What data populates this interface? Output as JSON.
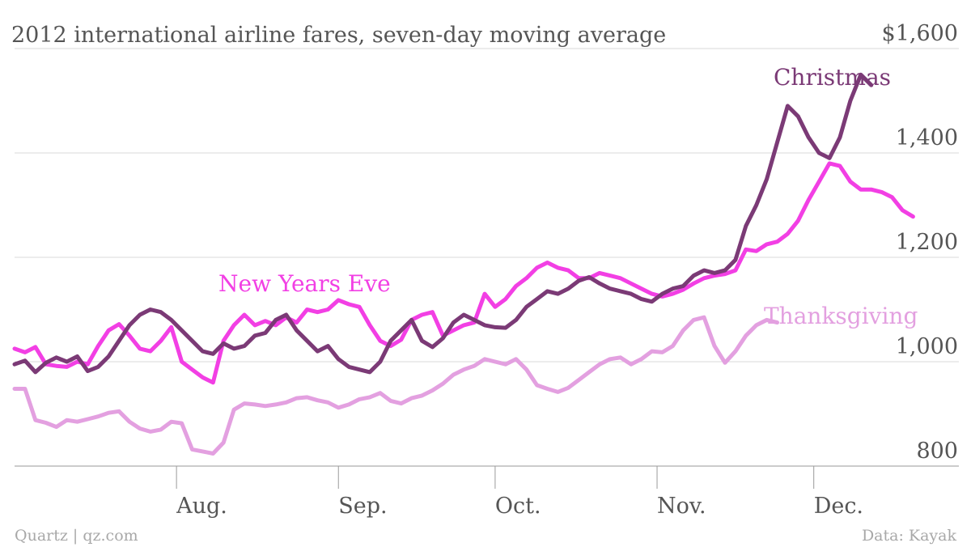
{
  "chart_data": {
    "type": "line",
    "title": "2012 international airline fares, seven-day moving average",
    "ylim": [
      800,
      1600
    ],
    "y_ticks": [
      {
        "value": 1600,
        "label": "$1,600"
      },
      {
        "value": 1400,
        "label": "1,400"
      },
      {
        "value": 1200,
        "label": "1,200"
      },
      {
        "value": 1000,
        "label": "1,000"
      },
      {
        "value": 800,
        "label": "800"
      }
    ],
    "x_ticks": [
      {
        "x": 31,
        "label": "Aug."
      },
      {
        "x": 62,
        "label": "Sep."
      },
      {
        "x": 92,
        "label": "Oct."
      },
      {
        "x": 123,
        "label": "Nov."
      },
      {
        "x": 153,
        "label": "Dec."
      }
    ],
    "xlim": [
      0,
      180
    ],
    "grid": true,
    "source_left": "Quartz | qz.com",
    "source_right": "Data: Kayak",
    "series": [
      {
        "name": "New Years Eve",
        "color": "#f23fe4",
        "points": [
          [
            0,
            1025
          ],
          [
            2,
            1018
          ],
          [
            4,
            1028
          ],
          [
            6,
            995
          ],
          [
            8,
            992
          ],
          [
            10,
            990
          ],
          [
            12,
            1000
          ],
          [
            14,
            995
          ],
          [
            16,
            1030
          ],
          [
            18,
            1060
          ],
          [
            20,
            1072
          ],
          [
            22,
            1050
          ],
          [
            24,
            1025
          ],
          [
            26,
            1020
          ],
          [
            28,
            1040
          ],
          [
            30,
            1066
          ],
          [
            32,
            1000
          ],
          [
            34,
            985
          ],
          [
            36,
            970
          ],
          [
            38,
            960
          ],
          [
            40,
            1040
          ],
          [
            42,
            1070
          ],
          [
            44,
            1090
          ],
          [
            46,
            1070
          ],
          [
            48,
            1078
          ],
          [
            50,
            1070
          ],
          [
            52,
            1085
          ],
          [
            54,
            1075
          ],
          [
            56,
            1100
          ],
          [
            58,
            1095
          ],
          [
            60,
            1100
          ],
          [
            62,
            1118
          ],
          [
            64,
            1110
          ],
          [
            66,
            1105
          ],
          [
            68,
            1070
          ],
          [
            70,
            1040
          ],
          [
            72,
            1030
          ],
          [
            74,
            1042
          ],
          [
            76,
            1080
          ],
          [
            78,
            1090
          ],
          [
            80,
            1095
          ],
          [
            82,
            1050
          ],
          [
            84,
            1060
          ],
          [
            86,
            1070
          ],
          [
            88,
            1075
          ],
          [
            90,
            1130
          ],
          [
            92,
            1105
          ],
          [
            94,
            1120
          ],
          [
            96,
            1145
          ],
          [
            98,
            1160
          ],
          [
            100,
            1180
          ],
          [
            102,
            1190
          ],
          [
            104,
            1180
          ],
          [
            106,
            1175
          ],
          [
            108,
            1160
          ],
          [
            110,
            1160
          ],
          [
            112,
            1170
          ],
          [
            114,
            1165
          ],
          [
            116,
            1160
          ],
          [
            118,
            1150
          ],
          [
            120,
            1140
          ],
          [
            122,
            1130
          ],
          [
            124,
            1125
          ],
          [
            126,
            1130
          ],
          [
            128,
            1138
          ],
          [
            130,
            1150
          ],
          [
            132,
            1160
          ],
          [
            134,
            1165
          ],
          [
            136,
            1168
          ],
          [
            138,
            1175
          ],
          [
            140,
            1215
          ],
          [
            142,
            1212
          ],
          [
            144,
            1225
          ],
          [
            146,
            1230
          ],
          [
            148,
            1245
          ],
          [
            150,
            1270
          ],
          [
            152,
            1310
          ],
          [
            154,
            1345
          ],
          [
            156,
            1380
          ],
          [
            158,
            1375
          ],
          [
            160,
            1345
          ],
          [
            162,
            1330
          ],
          [
            164,
            1330
          ],
          [
            166,
            1325
          ],
          [
            168,
            1315
          ],
          [
            170,
            1290
          ],
          [
            172,
            1278
          ]
        ]
      },
      {
        "name": "Christmas",
        "color": "#7b3a76",
        "points": [
          [
            0,
            995
          ],
          [
            2,
            1002
          ],
          [
            4,
            980
          ],
          [
            6,
            998
          ],
          [
            8,
            1008
          ],
          [
            10,
            1000
          ],
          [
            12,
            1010
          ],
          [
            14,
            982
          ],
          [
            16,
            990
          ],
          [
            18,
            1010
          ],
          [
            20,
            1040
          ],
          [
            22,
            1070
          ],
          [
            24,
            1090
          ],
          [
            26,
            1100
          ],
          [
            28,
            1095
          ],
          [
            30,
            1080
          ],
          [
            32,
            1060
          ],
          [
            34,
            1040
          ],
          [
            36,
            1020
          ],
          [
            38,
            1015
          ],
          [
            40,
            1035
          ],
          [
            42,
            1025
          ],
          [
            44,
            1030
          ],
          [
            46,
            1050
          ],
          [
            48,
            1055
          ],
          [
            50,
            1080
          ],
          [
            52,
            1090
          ],
          [
            54,
            1060
          ],
          [
            56,
            1040
          ],
          [
            58,
            1020
          ],
          [
            60,
            1030
          ],
          [
            62,
            1005
          ],
          [
            64,
            990
          ],
          [
            66,
            985
          ],
          [
            68,
            980
          ],
          [
            70,
            1000
          ],
          [
            72,
            1040
          ],
          [
            74,
            1060
          ],
          [
            76,
            1080
          ],
          [
            78,
            1040
          ],
          [
            80,
            1028
          ],
          [
            82,
            1045
          ],
          [
            84,
            1075
          ],
          [
            86,
            1090
          ],
          [
            88,
            1080
          ],
          [
            90,
            1070
          ],
          [
            92,
            1066
          ],
          [
            94,
            1065
          ],
          [
            96,
            1080
          ],
          [
            98,
            1105
          ],
          [
            100,
            1120
          ],
          [
            102,
            1135
          ],
          [
            104,
            1130
          ],
          [
            106,
            1140
          ],
          [
            108,
            1155
          ],
          [
            110,
            1162
          ],
          [
            112,
            1150
          ],
          [
            114,
            1140
          ],
          [
            116,
            1135
          ],
          [
            118,
            1130
          ],
          [
            120,
            1120
          ],
          [
            122,
            1115
          ],
          [
            124,
            1130
          ],
          [
            126,
            1140
          ],
          [
            128,
            1145
          ],
          [
            130,
            1165
          ],
          [
            132,
            1175
          ],
          [
            134,
            1170
          ],
          [
            136,
            1175
          ],
          [
            138,
            1195
          ],
          [
            140,
            1260
          ],
          [
            142,
            1300
          ],
          [
            144,
            1350
          ],
          [
            146,
            1420
          ],
          [
            148,
            1490
          ],
          [
            150,
            1470
          ],
          [
            152,
            1430
          ],
          [
            154,
            1400
          ],
          [
            156,
            1390
          ],
          [
            158,
            1430
          ],
          [
            160,
            1500
          ],
          [
            162,
            1550
          ],
          [
            164,
            1530
          ]
        ]
      },
      {
        "name": "Thanksgiving",
        "color": "#e3a0e0",
        "points": [
          [
            0,
            948
          ],
          [
            2,
            948
          ],
          [
            4,
            888
          ],
          [
            6,
            883
          ],
          [
            8,
            875
          ],
          [
            10,
            888
          ],
          [
            12,
            885
          ],
          [
            14,
            890
          ],
          [
            16,
            895
          ],
          [
            18,
            902
          ],
          [
            20,
            905
          ],
          [
            22,
            885
          ],
          [
            24,
            872
          ],
          [
            26,
            866
          ],
          [
            28,
            870
          ],
          [
            30,
            885
          ],
          [
            32,
            882
          ],
          [
            34,
            832
          ],
          [
            36,
            828
          ],
          [
            38,
            824
          ],
          [
            40,
            845
          ],
          [
            42,
            908
          ],
          [
            44,
            920
          ],
          [
            46,
            918
          ],
          [
            48,
            915
          ],
          [
            50,
            918
          ],
          [
            52,
            922
          ],
          [
            54,
            930
          ],
          [
            56,
            932
          ],
          [
            58,
            926
          ],
          [
            60,
            922
          ],
          [
            62,
            912
          ],
          [
            64,
            918
          ],
          [
            66,
            928
          ],
          [
            68,
            932
          ],
          [
            70,
            940
          ],
          [
            72,
            925
          ],
          [
            74,
            920
          ],
          [
            76,
            930
          ],
          [
            78,
            935
          ],
          [
            80,
            945
          ],
          [
            82,
            958
          ],
          [
            84,
            975
          ],
          [
            86,
            985
          ],
          [
            88,
            992
          ],
          [
            90,
            1005
          ],
          [
            92,
            1000
          ],
          [
            94,
            995
          ],
          [
            96,
            1005
          ],
          [
            98,
            985
          ],
          [
            100,
            955
          ],
          [
            102,
            948
          ],
          [
            104,
            942
          ],
          [
            106,
            950
          ],
          [
            108,
            965
          ],
          [
            110,
            980
          ],
          [
            112,
            995
          ],
          [
            114,
            1005
          ],
          [
            116,
            1008
          ],
          [
            118,
            995
          ],
          [
            120,
            1005
          ],
          [
            122,
            1020
          ],
          [
            124,
            1018
          ],
          [
            126,
            1030
          ],
          [
            128,
            1060
          ],
          [
            130,
            1080
          ],
          [
            132,
            1085
          ],
          [
            134,
            1030
          ],
          [
            136,
            998
          ],
          [
            138,
            1020
          ],
          [
            140,
            1050
          ],
          [
            142,
            1070
          ],
          [
            144,
            1080
          ],
          [
            146,
            1075
          ]
        ]
      }
    ],
    "labels": {
      "nye": "New Years Eve",
      "christmas": "Christmas",
      "thanksgiving": "Thanksgiving"
    }
  }
}
